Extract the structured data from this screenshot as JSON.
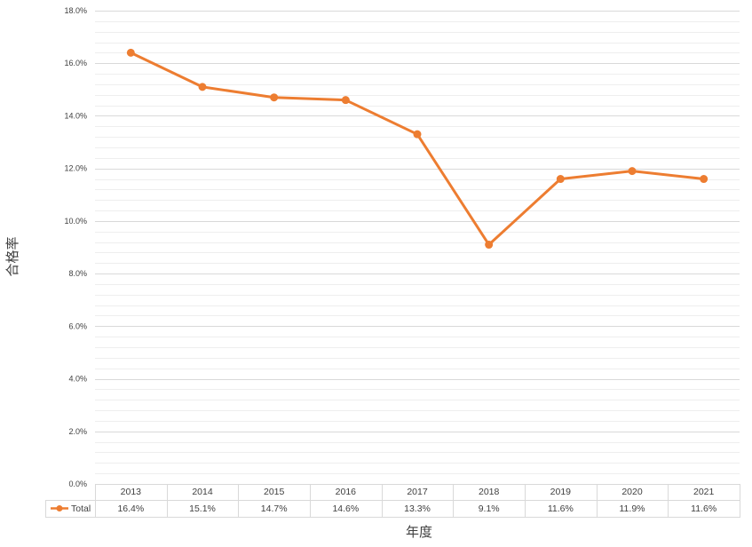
{
  "chart_data": {
    "type": "line",
    "title": "",
    "xlabel": "年度",
    "ylabel": "合格率",
    "ylim": [
      0,
      18
    ],
    "y_ticks": [
      "0.0%",
      "2.0%",
      "4.0%",
      "6.0%",
      "8.0%",
      "10.0%",
      "12.0%",
      "14.0%",
      "16.0%",
      "18.0%"
    ],
    "categories": [
      "2013",
      "2014",
      "2015",
      "2016",
      "2017",
      "2018",
      "2019",
      "2020",
      "2021"
    ],
    "series": [
      {
        "name": "Total",
        "color": "#ed7d31",
        "values": [
          16.4,
          15.1,
          14.7,
          14.6,
          13.3,
          9.1,
          11.6,
          11.9,
          11.6
        ],
        "labels": [
          "16.4%",
          "15.1%",
          "14.7%",
          "14.6%",
          "13.3%",
          "9.1%",
          "11.6%",
          "11.9%",
          "11.6%"
        ]
      }
    ],
    "grid": true,
    "legend": "data-table"
  }
}
